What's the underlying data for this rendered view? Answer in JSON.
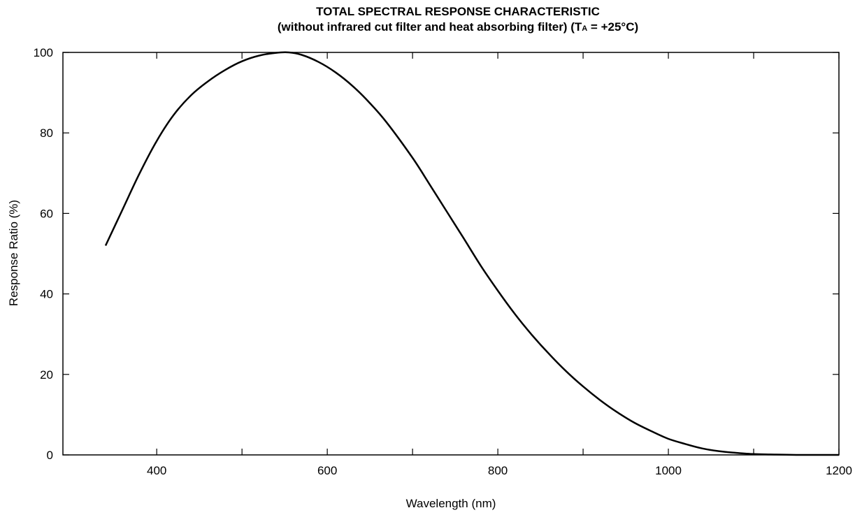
{
  "chart_data": {
    "type": "line",
    "title": "TOTAL SPECTRAL RESPONSE CHARACTERISTIC",
    "subtitle_prefix": "(without infrared cut filter and heat absorbing filter) (T",
    "subtitle_sub": "A",
    "subtitle_suffix": " = +25°C)",
    "xlabel": "Wavelength (nm)",
    "ylabel": "Response Ratio (%)",
    "xlim": [
      290,
      1200
    ],
    "ylim": [
      0,
      100
    ],
    "xticks": [
      400,
      500,
      600,
      700,
      800,
      900,
      1000,
      1100,
      1200
    ],
    "xtick_labels": [
      "400",
      "",
      "600",
      "",
      "800",
      "",
      "1000",
      "",
      "1200"
    ],
    "yticks": [
      0,
      20,
      40,
      60,
      80,
      100
    ],
    "ytick_labels": [
      "0",
      "20",
      "40",
      "60",
      "80",
      "100"
    ],
    "grid": false,
    "series": [
      {
        "x": [
          340,
          360,
          380,
          400,
          420,
          440,
          460,
          480,
          500,
          520,
          540,
          555,
          570,
          590,
          610,
          630,
          650,
          670,
          700,
          720,
          740,
          760,
          780,
          800,
          820,
          840,
          860,
          880,
          900,
          920,
          940,
          960,
          980,
          1000,
          1020,
          1040,
          1060,
          1080,
          1100,
          1120,
          1150,
          1200
        ],
        "y": [
          52,
          61,
          70,
          78,
          84.5,
          89.3,
          92.8,
          95.6,
          97.8,
          99.2,
          99.9,
          100,
          99.4,
          97.6,
          95,
          91.6,
          87.4,
          82.5,
          73.8,
          67.2,
          60.5,
          53.8,
          47,
          40.8,
          35,
          29.8,
          25.1,
          20.8,
          17,
          13.6,
          10.6,
          8,
          5.9,
          4,
          2.7,
          1.6,
          0.9,
          0.5,
          0.2,
          0.1,
          0,
          0
        ]
      }
    ]
  }
}
